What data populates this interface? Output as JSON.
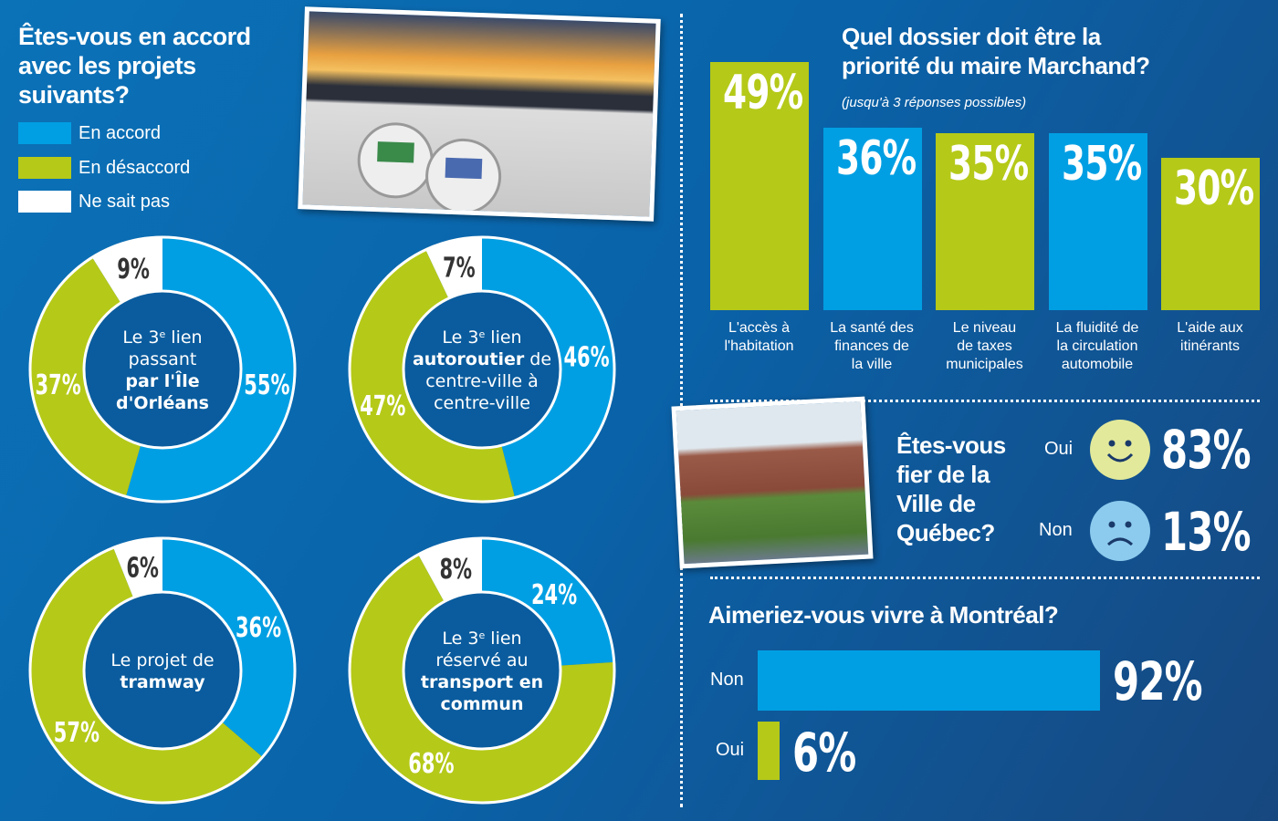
{
  "colors": {
    "agree": "#009fe3",
    "disagree": "#b5c918",
    "unknown": "#ffffff",
    "center": "#0a5c9e"
  },
  "left_title": [
    "Êtes-vous en accord",
    "avec les projets",
    "suivants?"
  ],
  "legend": [
    {
      "label": "En accord",
      "color": "#009fe3"
    },
    {
      "label": "En désaccord",
      "color": "#b5c918"
    },
    {
      "label": "Ne sait pas",
      "color": "#ffffff"
    }
  ],
  "chart_data": [
    {
      "type": "pie",
      "title": "Le 3e lien passant par l'Île d'Orléans",
      "series": [
        {
          "name": "En accord",
          "value": 55
        },
        {
          "name": "En désaccord",
          "value": 37
        },
        {
          "name": "Ne sait pas",
          "value": 9
        }
      ],
      "labels": [
        "55%",
        "37%",
        "9%"
      ],
      "center": [
        [
          [
            "Le 3",
            0
          ],
          [
            "e",
            2
          ],
          [
            " lien",
            0
          ]
        ],
        [
          [
            "passant",
            0
          ]
        ],
        [
          [
            "par l'Île",
            1
          ]
        ],
        [
          [
            "d'Orléans",
            1
          ]
        ]
      ]
    },
    {
      "type": "pie",
      "title": "Le 3e lien autoroutier de centre-ville à centre-ville",
      "series": [
        {
          "name": "En accord",
          "value": 46
        },
        {
          "name": "En désaccord",
          "value": 47
        },
        {
          "name": "Ne sait pas",
          "value": 7
        }
      ],
      "labels": [
        "46%",
        "47%",
        "7%"
      ],
      "center": [
        [
          [
            "Le 3",
            0
          ],
          [
            "e",
            2
          ],
          [
            " lien",
            0
          ]
        ],
        [
          [
            "autoroutier",
            1
          ],
          [
            " de",
            0
          ]
        ],
        [
          [
            "centre-ville à",
            0
          ]
        ],
        [
          [
            "centre-ville",
            0
          ]
        ]
      ]
    },
    {
      "type": "pie",
      "title": "Le projet de tramway",
      "series": [
        {
          "name": "En accord",
          "value": 36
        },
        {
          "name": "En désaccord",
          "value": 57
        },
        {
          "name": "Ne sait pas",
          "value": 6
        }
      ],
      "labels": [
        "36%",
        "57%",
        "6%"
      ],
      "center": [
        [
          [
            "Le projet de",
            0
          ]
        ],
        [
          [
            "tramway",
            1
          ]
        ]
      ]
    },
    {
      "type": "pie",
      "title": "Le 3e lien réservé au transport en commun",
      "series": [
        {
          "name": "En accord",
          "value": 24
        },
        {
          "name": "En désaccord",
          "value": 68
        },
        {
          "name": "Ne sait pas",
          "value": 8
        }
      ],
      "labels": [
        "24%",
        "68%",
        "8%"
      ],
      "center": [
        [
          [
            "Le 3",
            0
          ],
          [
            "e",
            2
          ],
          [
            " lien",
            0
          ]
        ],
        [
          [
            "réservé au",
            0
          ]
        ],
        [
          [
            "transport en",
            1
          ]
        ],
        [
          [
            "commun",
            1
          ]
        ]
      ]
    },
    {
      "type": "bar",
      "title": "Quel dossier doit être la priorité du maire Marchand?",
      "subtitle": "(jusqu'à 3 réponses possibles)",
      "title_lines": [
        "Quel dossier doit être la",
        "priorité du maire Marchand?"
      ],
      "categories": [
        [
          "L'accès à",
          "l'habitation"
        ],
        [
          "La santé des",
          "finances de",
          "la ville"
        ],
        [
          "Le niveau",
          "de taxes",
          "municipales"
        ],
        [
          "La fluidité de",
          "la circulation",
          "automobile"
        ],
        [
          "L'aide aux",
          "itinérants"
        ]
      ],
      "values": [
        49,
        36,
        35,
        35,
        30
      ],
      "labels": [
        "49%",
        "36%",
        "35%",
        "35%",
        "30%"
      ],
      "colors": [
        "#b5c918",
        "#009fe3",
        "#b5c918",
        "#009fe3",
        "#b5c918"
      ],
      "ylim": [
        0,
        50
      ]
    },
    {
      "type": "table",
      "title": "Êtes-vous fier de la Ville de Québec?",
      "title_lines": [
        "Êtes-vous",
        "fier de la",
        "Ville de",
        "Québec?"
      ],
      "rows": [
        {
          "label": "Oui",
          "value": 83,
          "text": "83%",
          "icon": "smiley-happy-icon"
        },
        {
          "label": "Non",
          "value": 13,
          "text": "13%",
          "icon": "smiley-sad-icon"
        }
      ]
    },
    {
      "type": "bar",
      "orientation": "horizontal",
      "title": "Aimeriez-vous vivre à Montréal?",
      "categories": [
        "Non",
        "Oui"
      ],
      "values": [
        92,
        6
      ],
      "labels": [
        "92%",
        "6%"
      ],
      "colors": [
        "#009fe3",
        "#b5c918"
      ],
      "xlim": [
        0,
        100
      ]
    }
  ]
}
